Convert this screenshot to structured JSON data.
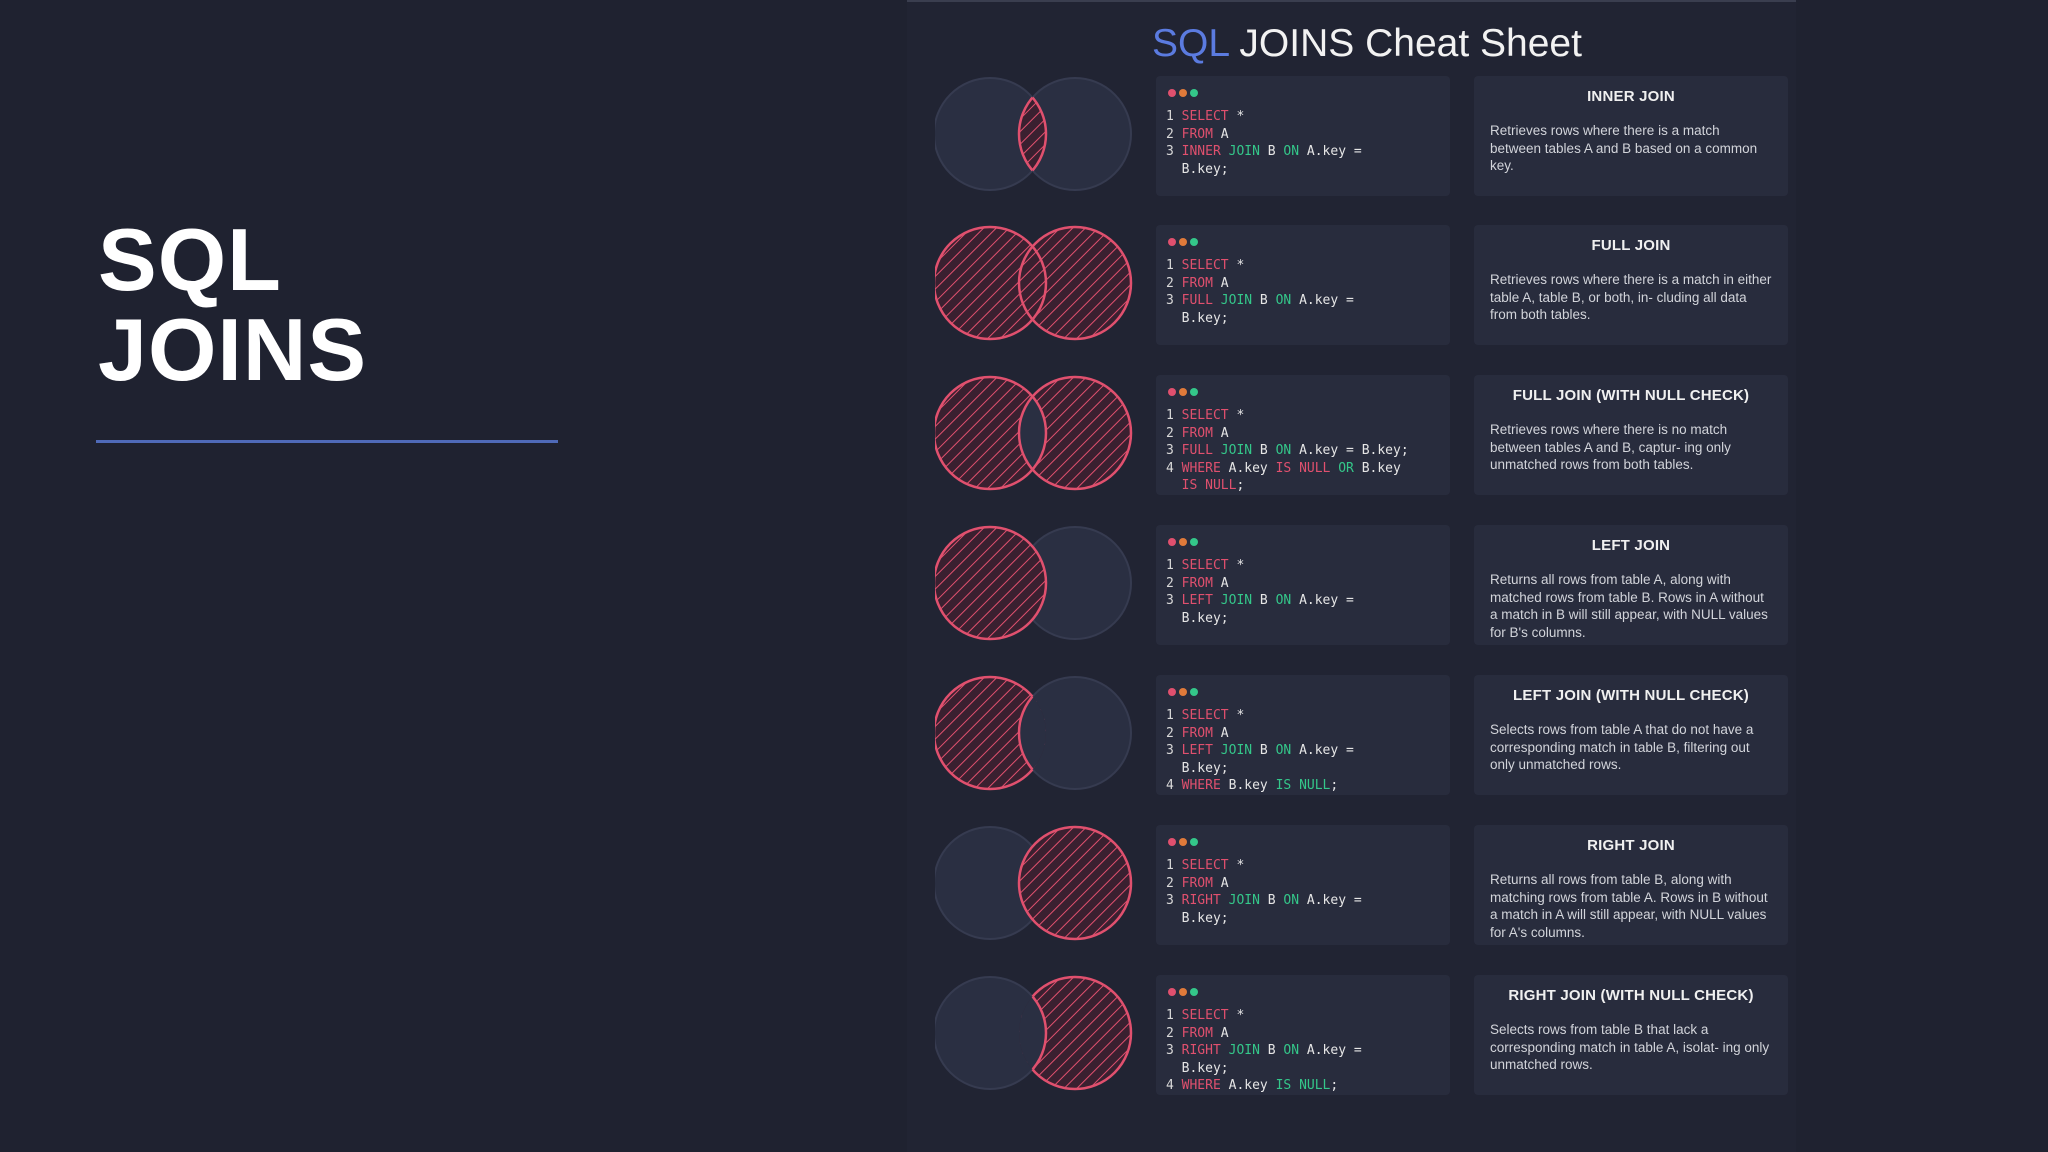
{
  "slide": {
    "title_line1": "SQL",
    "title_line2": "JOINS"
  },
  "sheet": {
    "title_keyword": "SQL",
    "title_rest": " JOINS Cheat Sheet",
    "colors": {
      "accent_blue": "#5b7be0",
      "hatch_red": "#e0506e",
      "keyword_green": "#34c78a"
    }
  },
  "joins": [
    {
      "venn": "inner",
      "code": [
        [
          {
            "t": "1 ",
            "c": "ln"
          },
          {
            "t": "SELECT",
            "c": "k"
          },
          {
            "t": " *",
            "c": ""
          }
        ],
        [
          {
            "t": "2 ",
            "c": "ln"
          },
          {
            "t": "FROM",
            "c": "k"
          },
          {
            "t": " A",
            "c": ""
          }
        ],
        [
          {
            "t": "3 ",
            "c": "ln"
          },
          {
            "t": "INNER",
            "c": "k"
          },
          {
            "t": " ",
            "c": ""
          },
          {
            "t": "JOIN",
            "c": "g"
          },
          {
            "t": " B ",
            "c": ""
          },
          {
            "t": "ON",
            "c": "g"
          },
          {
            "t": " A.key =",
            "c": ""
          }
        ],
        [
          {
            "t": "  B.key;",
            "c": ""
          }
        ]
      ],
      "title": "INNER JOIN",
      "description": "Retrieves rows where there is a match between tables A and B based on a common key."
    },
    {
      "venn": "full",
      "code": [
        [
          {
            "t": "1 ",
            "c": "ln"
          },
          {
            "t": "SELECT",
            "c": "k"
          },
          {
            "t": " *",
            "c": ""
          }
        ],
        [
          {
            "t": "2 ",
            "c": "ln"
          },
          {
            "t": "FROM",
            "c": "k"
          },
          {
            "t": " A",
            "c": ""
          }
        ],
        [
          {
            "t": "3 ",
            "c": "ln"
          },
          {
            "t": "FULL",
            "c": "k"
          },
          {
            "t": " ",
            "c": ""
          },
          {
            "t": "JOIN",
            "c": "g"
          },
          {
            "t": " B ",
            "c": ""
          },
          {
            "t": "ON",
            "c": "g"
          },
          {
            "t": " A.key =",
            "c": ""
          }
        ],
        [
          {
            "t": "  B.key;",
            "c": ""
          }
        ]
      ],
      "title": "FULL JOIN",
      "description": "Retrieves rows where there is a match in either table A, table B, or both, in- cluding all data from both tables."
    },
    {
      "venn": "full-null",
      "code": [
        [
          {
            "t": "1 ",
            "c": "ln"
          },
          {
            "t": "SELECT",
            "c": "k"
          },
          {
            "t": " *",
            "c": ""
          }
        ],
        [
          {
            "t": "2 ",
            "c": "ln"
          },
          {
            "t": "FROM",
            "c": "k"
          },
          {
            "t": " A",
            "c": ""
          }
        ],
        [
          {
            "t": "3 ",
            "c": "ln"
          },
          {
            "t": "FULL",
            "c": "k"
          },
          {
            "t": " ",
            "c": ""
          },
          {
            "t": "JOIN",
            "c": "g"
          },
          {
            "t": " B ",
            "c": ""
          },
          {
            "t": "ON",
            "c": "g"
          },
          {
            "t": " A.key = B.key;",
            "c": ""
          }
        ],
        [
          {
            "t": "4 ",
            "c": "ln"
          },
          {
            "t": "WHERE",
            "c": "k"
          },
          {
            "t": " A.key ",
            "c": ""
          },
          {
            "t": "IS NULL",
            "c": "k"
          },
          {
            "t": " ",
            "c": ""
          },
          {
            "t": "OR",
            "c": "g"
          },
          {
            "t": " B.key",
            "c": ""
          }
        ],
        [
          {
            "t": "  ",
            "c": ""
          },
          {
            "t": "IS NULL",
            "c": "k"
          },
          {
            "t": ";",
            "c": ""
          }
        ]
      ],
      "title": "FULL JOIN (WITH NULL CHECK)",
      "description": "Retrieves rows where there is no match between tables A and B, captur- ing only unmatched rows from both tables."
    },
    {
      "venn": "left",
      "code": [
        [
          {
            "t": "1 ",
            "c": "ln"
          },
          {
            "t": "SELECT",
            "c": "k"
          },
          {
            "t": " *",
            "c": ""
          }
        ],
        [
          {
            "t": "2 ",
            "c": "ln"
          },
          {
            "t": "FROM",
            "c": "k"
          },
          {
            "t": " A",
            "c": ""
          }
        ],
        [
          {
            "t": "3 ",
            "c": "ln"
          },
          {
            "t": "LEFT",
            "c": "k"
          },
          {
            "t": " ",
            "c": ""
          },
          {
            "t": "JOIN",
            "c": "g"
          },
          {
            "t": " B ",
            "c": ""
          },
          {
            "t": "ON",
            "c": "g"
          },
          {
            "t": " A.key =",
            "c": ""
          }
        ],
        [
          {
            "t": "  B.key;",
            "c": ""
          }
        ]
      ],
      "title": "LEFT JOIN",
      "description": "Returns all rows from table A, along with matched rows from table B. Rows in A without a match in B will still appear, with NULL values for B's columns."
    },
    {
      "venn": "left-null",
      "code": [
        [
          {
            "t": "1 ",
            "c": "ln"
          },
          {
            "t": "SELECT",
            "c": "k"
          },
          {
            "t": " *",
            "c": ""
          }
        ],
        [
          {
            "t": "2 ",
            "c": "ln"
          },
          {
            "t": "FROM",
            "c": "k"
          },
          {
            "t": " A",
            "c": ""
          }
        ],
        [
          {
            "t": "3 ",
            "c": "ln"
          },
          {
            "t": "LEFT",
            "c": "k"
          },
          {
            "t": " ",
            "c": ""
          },
          {
            "t": "JOIN",
            "c": "g"
          },
          {
            "t": " B ",
            "c": ""
          },
          {
            "t": "ON",
            "c": "g"
          },
          {
            "t": " A.key =",
            "c": ""
          }
        ],
        [
          {
            "t": "  B.key;",
            "c": ""
          }
        ],
        [
          {
            "t": "4 ",
            "c": "ln"
          },
          {
            "t": "WHERE",
            "c": "k"
          },
          {
            "t": " B.key ",
            "c": ""
          },
          {
            "t": "IS NULL",
            "c": "g"
          },
          {
            "t": ";",
            "c": ""
          }
        ]
      ],
      "title": "LEFT JOIN (WITH NULL CHECK)",
      "description": "Selects rows from table A that do not have a corresponding match in table B, filtering out only unmatched rows."
    },
    {
      "venn": "right",
      "code": [
        [
          {
            "t": "1 ",
            "c": "ln"
          },
          {
            "t": "SELECT",
            "c": "k"
          },
          {
            "t": " *",
            "c": ""
          }
        ],
        [
          {
            "t": "2 ",
            "c": "ln"
          },
          {
            "t": "FROM",
            "c": "k"
          },
          {
            "t": " A",
            "c": ""
          }
        ],
        [
          {
            "t": "3 ",
            "c": "ln"
          },
          {
            "t": "RIGHT",
            "c": "k"
          },
          {
            "t": " ",
            "c": ""
          },
          {
            "t": "JOIN",
            "c": "g"
          },
          {
            "t": " B ",
            "c": ""
          },
          {
            "t": "ON",
            "c": "g"
          },
          {
            "t": " A.key =",
            "c": ""
          }
        ],
        [
          {
            "t": "  B.key;",
            "c": ""
          }
        ]
      ],
      "title": "RIGHT JOIN",
      "description": "Returns all rows from table B, along with matching rows from table A. Rows in B without a match in A will still appear, with NULL values for A's columns."
    },
    {
      "venn": "right-null",
      "code": [
        [
          {
            "t": "1 ",
            "c": "ln"
          },
          {
            "t": "SELECT",
            "c": "k"
          },
          {
            "t": " *",
            "c": ""
          }
        ],
        [
          {
            "t": "2 ",
            "c": "ln"
          },
          {
            "t": "FROM",
            "c": "k"
          },
          {
            "t": " A",
            "c": ""
          }
        ],
        [
          {
            "t": "3 ",
            "c": "ln"
          },
          {
            "t": "RIGHT",
            "c": "k"
          },
          {
            "t": " ",
            "c": ""
          },
          {
            "t": "JOIN",
            "c": "g"
          },
          {
            "t": " B ",
            "c": ""
          },
          {
            "t": "ON",
            "c": "g"
          },
          {
            "t": " A.key =",
            "c": ""
          }
        ],
        [
          {
            "t": "  B.key;",
            "c": ""
          }
        ],
        [
          {
            "t": "4 ",
            "c": "ln"
          },
          {
            "t": "WHERE",
            "c": "k"
          },
          {
            "t": " A.key ",
            "c": ""
          },
          {
            "t": "IS NULL",
            "c": "g"
          },
          {
            "t": ";",
            "c": ""
          }
        ]
      ],
      "title": "RIGHT JOIN (WITH NULL CHECK)",
      "description": "Selects rows from table B that lack a corresponding match in table A, isolat- ing only unmatched rows."
    }
  ]
}
